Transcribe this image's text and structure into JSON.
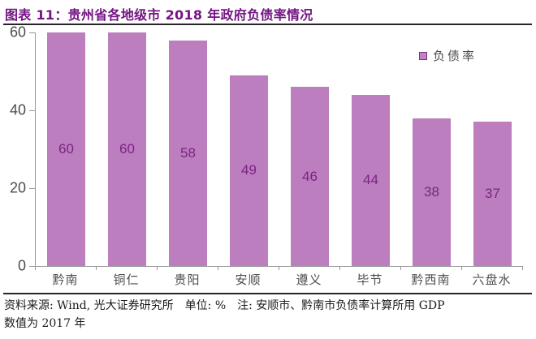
{
  "header": {
    "title": "图表 11：贵州省各地级市 2018 年政府负债率情况"
  },
  "legend": {
    "label": "负债率"
  },
  "chart_data": {
    "type": "bar",
    "title": "贵州省各地级市2018年政府负债率情况",
    "categories": [
      "黔南",
      "铜仁",
      "贵阳",
      "安顺",
      "遵义",
      "毕节",
      "黔西南",
      "六盘水"
    ],
    "values": [
      60,
      60,
      58,
      49,
      46,
      44,
      38,
      37
    ],
    "series_name": "负债率",
    "unit": "%",
    "xlabel": "",
    "ylabel": "",
    "ylim": [
      0,
      60
    ],
    "yticks": [
      0,
      20,
      40,
      60
    ],
    "grid": false,
    "legend_position": "top-right",
    "data_labels": "inside-center"
  },
  "footer": {
    "line1": "资料来源: Wind, 光大证券研究所　单位: %　注: 安顺市、黔南市负债率计算所用 GDP",
    "line2": "数值为 2017 年"
  },
  "colors": {
    "title": "#741583",
    "bar_fill": "#BC7EBE",
    "value_label": "#7B2483",
    "axis_text": "#4D4D4D",
    "axis_line": "#999999",
    "rule_dark": "#262626",
    "footer_text": "#1A1A1A"
  }
}
